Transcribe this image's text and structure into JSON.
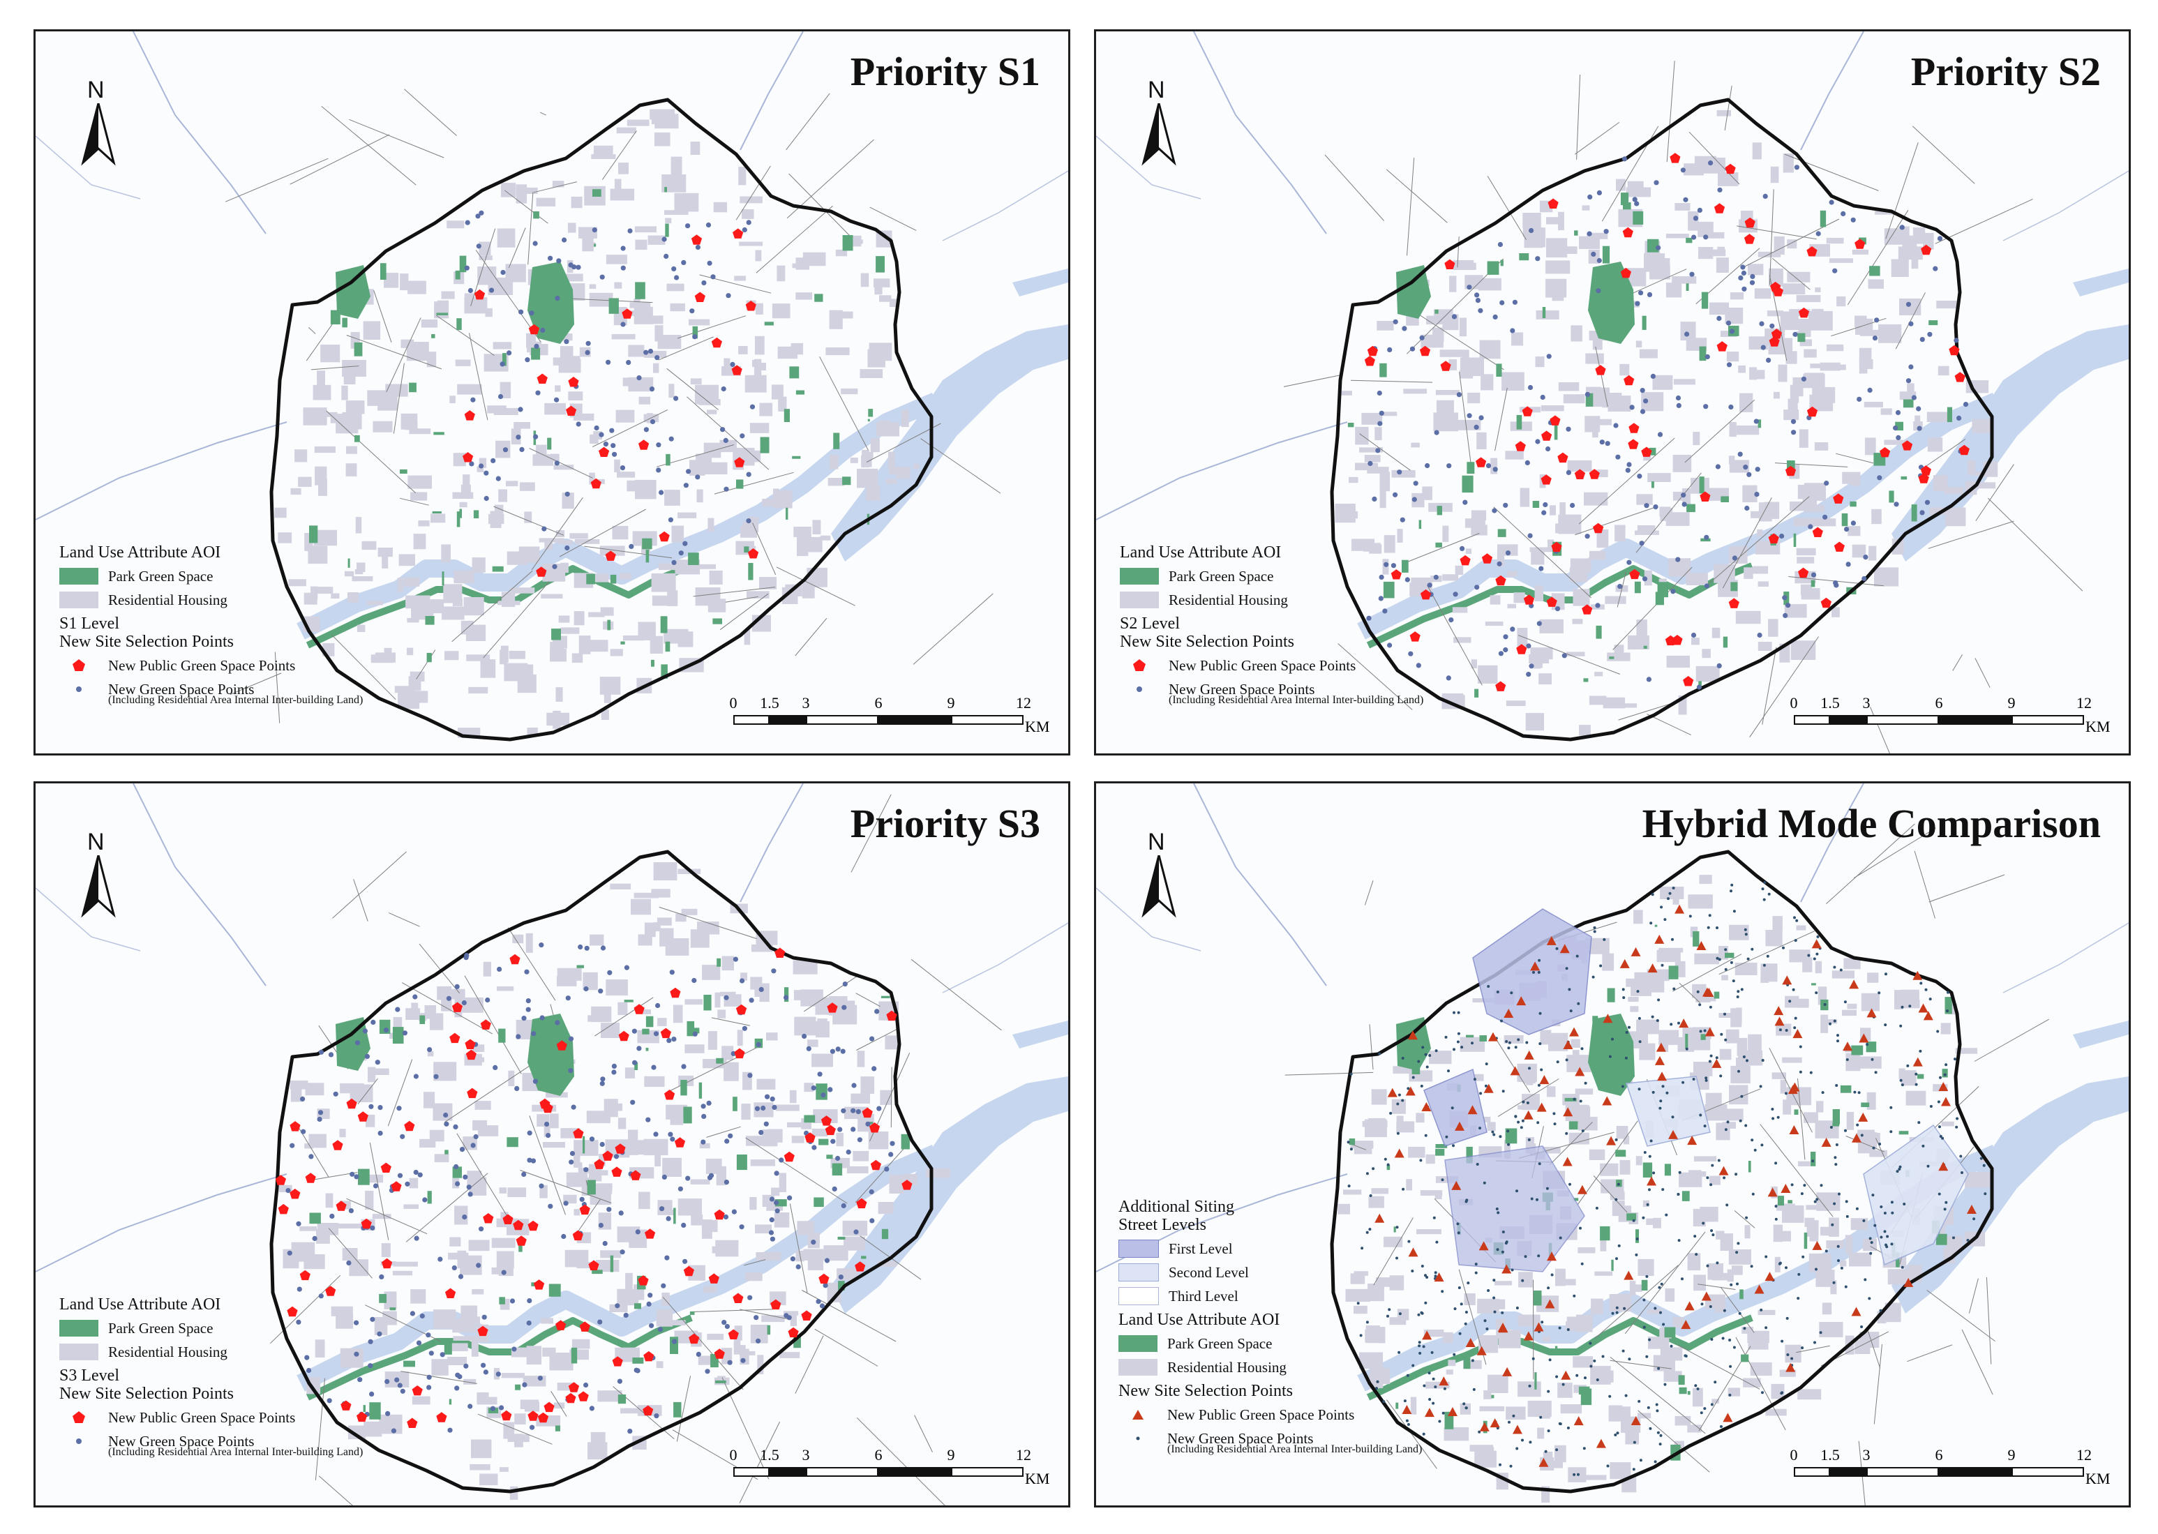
{
  "colors": {
    "park": "#5aa57a",
    "residential": "#d2d1e0",
    "water": "#c6d6ef",
    "roads": "#7e7e7e",
    "boundary": "#111111",
    "public_point": "#ff1a1a",
    "green_point": "#5b6fa6",
    "hybrid_triangle": "#c93a1b",
    "level_first": "#b9bfe6",
    "level_second": "#dde4f5",
    "level_third": "#ffffff"
  },
  "panels": [
    {
      "title": "Priority S1",
      "north_label": "N",
      "legend": {
        "aoi_heading": "Land Use Attribute AOI",
        "park_label": "Park Green Space",
        "residential_label": "Residential Housing",
        "level_heading_1": "S1 Level",
        "level_heading_2": "New Site Selection Points",
        "public_label": "New Public Green Space Points",
        "green_label": "New Green Space Points",
        "green_note": "(Including Residential Area Internal Inter-building Land)"
      },
      "scale": {
        "ticks": [
          "0",
          "1.5",
          "3",
          "6",
          "9",
          "12"
        ],
        "unit": "KM"
      }
    },
    {
      "title": "Priority S2",
      "north_label": "N",
      "legend": {
        "aoi_heading": "Land Use Attribute AOI",
        "park_label": "Park Green Space",
        "residential_label": "Residential Housing",
        "level_heading_1": "S2 Level",
        "level_heading_2": "New Site Selection Points",
        "public_label": "New Public Green Space Points",
        "green_label": "New Green Space Points",
        "green_note": "(Including Residential Area Internal Inter-building Land)"
      },
      "scale": {
        "ticks": [
          "0",
          "1.5",
          "3",
          "6",
          "9",
          "12"
        ],
        "unit": "KM"
      }
    },
    {
      "title": "Priority S3",
      "north_label": "N",
      "legend": {
        "aoi_heading": "Land Use Attribute AOI",
        "park_label": "Park Green Space",
        "residential_label": "Residential Housing",
        "level_heading_1": "S3 Level",
        "level_heading_2": "New Site Selection Points",
        "public_label": "New Public Green Space Points",
        "green_label": "New Green Space Points",
        "green_note": "(Including Residential Area Internal Inter-building Land)"
      },
      "scale": {
        "ticks": [
          "0",
          "1.5",
          "3",
          "6",
          "9",
          "12"
        ],
        "unit": "KM"
      }
    },
    {
      "title": "Hybrid Mode Comparison",
      "north_label": "N",
      "legend": {
        "siting_heading_1": "Additional Siting",
        "siting_heading_2": "Street Levels",
        "first_level": "First Level",
        "second_level": "Second Level",
        "third_level": "Third Level",
        "aoi_heading": "Land Use Attribute AOI",
        "park_label": "Park Green Space",
        "residential_label": "Residential Housing",
        "points_heading": "New Site Selection Points",
        "public_label": "New Public Green Space Points",
        "green_label": "New Green Space Points",
        "green_note": "(Including Residential Area Internal Inter-building Land)"
      },
      "scale": {
        "ticks": [
          "0",
          "1.5",
          "3",
          "6",
          "9",
          "12"
        ],
        "unit": "KM"
      }
    }
  ]
}
